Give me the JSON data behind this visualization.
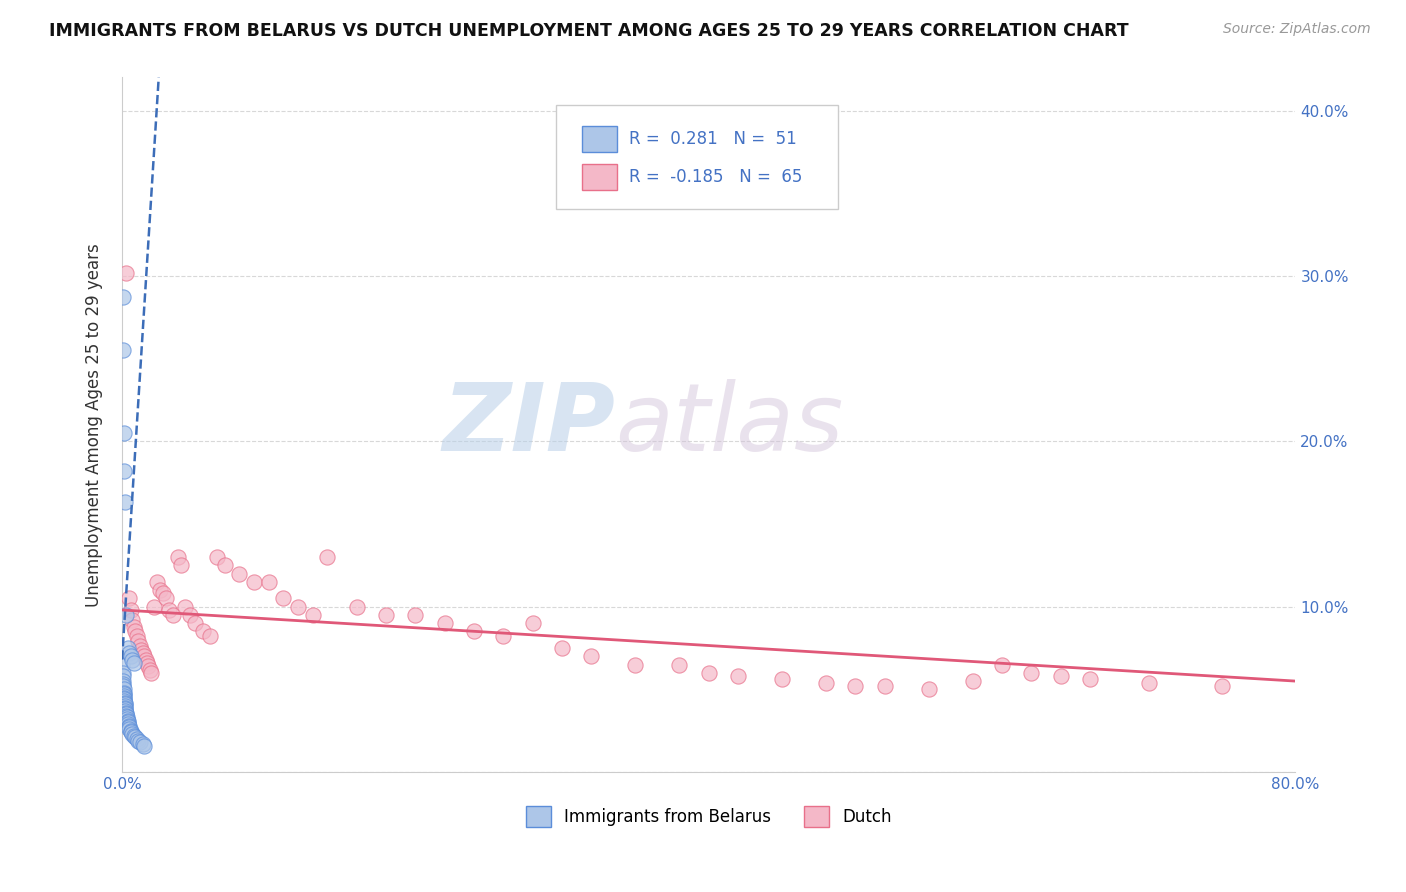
{
  "title": "IMMIGRANTS FROM BELARUS VS DUTCH UNEMPLOYMENT AMONG AGES 25 TO 29 YEARS CORRELATION CHART",
  "source": "Source: ZipAtlas.com",
  "ylabel": "Unemployment Among Ages 25 to 29 years",
  "xlim": [
    0,
    0.8
  ],
  "ylim": [
    0,
    0.42
  ],
  "xticks": [
    0.0,
    0.1,
    0.2,
    0.3,
    0.4,
    0.5,
    0.6,
    0.7,
    0.8
  ],
  "yticks": [
    0.0,
    0.1,
    0.2,
    0.3,
    0.4
  ],
  "xticklabels": [
    "0.0%",
    "",
    "",
    "",
    "",
    "",
    "",
    "",
    "80.0%"
  ],
  "yticklabels_right": [
    "",
    "10.0%",
    "20.0%",
    "30.0%",
    "40.0%"
  ],
  "legend_labels": [
    "Immigrants from Belarus",
    "Dutch"
  ],
  "blue_fill": "#adc6e8",
  "pink_fill": "#f4b8c8",
  "blue_edge": "#5b8dd9",
  "pink_edge": "#e8708a",
  "blue_line_color": "#3c6db8",
  "pink_line_color": "#e05878",
  "R_blue": 0.281,
  "N_blue": 51,
  "R_pink": -0.185,
  "N_pink": 65,
  "watermark_zip": "ZIP",
  "watermark_atlas": "atlas",
  "background_color": "#ffffff",
  "grid_color": "#d8d8d8",
  "blue_scatter_x": [
    0.0003,
    0.0004,
    0.0005,
    0.0006,
    0.0007,
    0.0008,
    0.001,
    0.001,
    0.0012,
    0.0013,
    0.0014,
    0.0015,
    0.0016,
    0.0017,
    0.0018,
    0.002,
    0.002,
    0.0022,
    0.0023,
    0.0025,
    0.003,
    0.003,
    0.0032,
    0.0035,
    0.004,
    0.004,
    0.0042,
    0.0045,
    0.005,
    0.005,
    0.006,
    0.006,
    0.007,
    0.008,
    0.009,
    0.01,
    0.011,
    0.012,
    0.014,
    0.015,
    0.0005,
    0.0008,
    0.001,
    0.0015,
    0.002,
    0.003,
    0.004,
    0.005,
    0.006,
    0.007,
    0.008
  ],
  "blue_scatter_y": [
    0.065,
    0.06,
    0.058,
    0.055,
    0.053,
    0.052,
    0.05,
    0.048,
    0.047,
    0.046,
    0.045,
    0.044,
    0.043,
    0.042,
    0.041,
    0.04,
    0.039,
    0.038,
    0.037,
    0.036,
    0.035,
    0.034,
    0.033,
    0.032,
    0.031,
    0.03,
    0.029,
    0.028,
    0.027,
    0.026,
    0.025,
    0.024,
    0.023,
    0.022,
    0.021,
    0.02,
    0.019,
    0.018,
    0.017,
    0.016,
    0.287,
    0.255,
    0.205,
    0.182,
    0.163,
    0.095,
    0.075,
    0.072,
    0.07,
    0.068,
    0.066
  ],
  "pink_scatter_x": [
    0.003,
    0.005,
    0.006,
    0.007,
    0.008,
    0.009,
    0.01,
    0.011,
    0.012,
    0.013,
    0.014,
    0.015,
    0.016,
    0.017,
    0.018,
    0.019,
    0.02,
    0.022,
    0.024,
    0.026,
    0.028,
    0.03,
    0.032,
    0.035,
    0.038,
    0.04,
    0.043,
    0.046,
    0.05,
    0.055,
    0.06,
    0.065,
    0.07,
    0.08,
    0.09,
    0.1,
    0.11,
    0.12,
    0.13,
    0.14,
    0.16,
    0.18,
    0.2,
    0.22,
    0.24,
    0.26,
    0.28,
    0.3,
    0.32,
    0.35,
    0.38,
    0.4,
    0.42,
    0.45,
    0.48,
    0.5,
    0.52,
    0.55,
    0.58,
    0.6,
    0.62,
    0.64,
    0.66,
    0.7,
    0.75
  ],
  "pink_scatter_y": [
    0.302,
    0.105,
    0.098,
    0.092,
    0.088,
    0.085,
    0.082,
    0.079,
    0.076,
    0.074,
    0.072,
    0.07,
    0.068,
    0.066,
    0.064,
    0.062,
    0.06,
    0.1,
    0.115,
    0.11,
    0.108,
    0.105,
    0.098,
    0.095,
    0.13,
    0.125,
    0.1,
    0.095,
    0.09,
    0.085,
    0.082,
    0.13,
    0.125,
    0.12,
    0.115,
    0.115,
    0.105,
    0.1,
    0.095,
    0.13,
    0.1,
    0.095,
    0.095,
    0.09,
    0.085,
    0.082,
    0.09,
    0.075,
    0.07,
    0.065,
    0.065,
    0.06,
    0.058,
    0.056,
    0.054,
    0.052,
    0.052,
    0.05,
    0.055,
    0.065,
    0.06,
    0.058,
    0.056,
    0.054,
    0.052
  ],
  "blue_trendline_x": [
    0.0,
    0.025
  ],
  "blue_trendline_y": [
    0.068,
    0.42
  ],
  "pink_trendline_x": [
    0.0,
    0.8
  ],
  "pink_trendline_y": [
    0.098,
    0.055
  ]
}
